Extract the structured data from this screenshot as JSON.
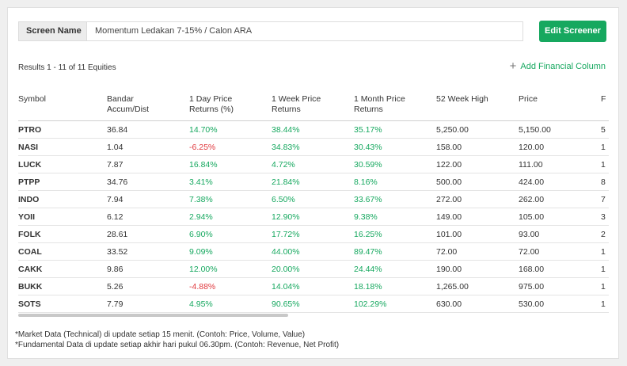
{
  "screen": {
    "label": "Screen Name",
    "name": "Momentum Ledakan 7-15% / Calon ARA",
    "edit_button": "Edit Screener"
  },
  "results_text": "Results 1 - 11 of 11 Equities",
  "add_column_label": "Add Financial Column",
  "columns": [
    {
      "line1": "Symbol",
      "line2": ""
    },
    {
      "line1": "Bandar",
      "line2": "Accum/Dist"
    },
    {
      "line1": "1 Day Price",
      "line2": "Returns (%)"
    },
    {
      "line1": "1 Week Price",
      "line2": "Returns"
    },
    {
      "line1": "1 Month Price",
      "line2": "Returns"
    },
    {
      "line1": "52 Week High",
      "line2": ""
    },
    {
      "line1": "Price",
      "line2": ""
    },
    {
      "line1": "F",
      "line2": ""
    }
  ],
  "rows": [
    {
      "symbol": "PTRO",
      "bandar": "36.84",
      "day": "14.70%",
      "week": "38.44%",
      "month": "35.17%",
      "high52": "5,250.00",
      "price": "5,150.00",
      "next": "5"
    },
    {
      "symbol": "NASI",
      "bandar": "1.04",
      "day": "-6.25%",
      "week": "34.83%",
      "month": "30.43%",
      "high52": "158.00",
      "price": "120.00",
      "next": "1"
    },
    {
      "symbol": "LUCK",
      "bandar": "7.87",
      "day": "16.84%",
      "week": "4.72%",
      "month": "30.59%",
      "high52": "122.00",
      "price": "111.00",
      "next": "1"
    },
    {
      "symbol": "PTPP",
      "bandar": "34.76",
      "day": "3.41%",
      "week": "21.84%",
      "month": "8.16%",
      "high52": "500.00",
      "price": "424.00",
      "next": "8"
    },
    {
      "symbol": "INDO",
      "bandar": "7.94",
      "day": "7.38%",
      "week": "6.50%",
      "month": "33.67%",
      "high52": "272.00",
      "price": "262.00",
      "next": "7"
    },
    {
      "symbol": "YOII",
      "bandar": "6.12",
      "day": "2.94%",
      "week": "12.90%",
      "month": "9.38%",
      "high52": "149.00",
      "price": "105.00",
      "next": "3"
    },
    {
      "symbol": "FOLK",
      "bandar": "28.61",
      "day": "6.90%",
      "week": "17.72%",
      "month": "16.25%",
      "high52": "101.00",
      "price": "93.00",
      "next": "2"
    },
    {
      "symbol": "COAL",
      "bandar": "33.52",
      "day": "9.09%",
      "week": "44.00%",
      "month": "89.47%",
      "high52": "72.00",
      "price": "72.00",
      "next": "1"
    },
    {
      "symbol": "CAKK",
      "bandar": "9.86",
      "day": "12.00%",
      "week": "20.00%",
      "month": "24.44%",
      "high52": "190.00",
      "price": "168.00",
      "next": "1"
    },
    {
      "symbol": "BUKK",
      "bandar": "5.26",
      "day": "-4.88%",
      "week": "14.04%",
      "month": "18.18%",
      "high52": "1,265.00",
      "price": "975.00",
      "next": "1"
    },
    {
      "symbol": "SOTS",
      "bandar": "7.79",
      "day": "4.95%",
      "week": "90.65%",
      "month": "102.29%",
      "high52": "630.00",
      "price": "530.00",
      "next": "1"
    }
  ],
  "notes": [
    "*Market Data (Technical) di update setiap 15 menit. (Contoh: Price, Volume, Value)",
    "*Fundamental Data di update setiap akhir hari pukul 06.30pm. (Contoh: Revenue, Net Profit)"
  ],
  "colors": {
    "accent": "#16a85f",
    "negative": "#e0393e"
  }
}
